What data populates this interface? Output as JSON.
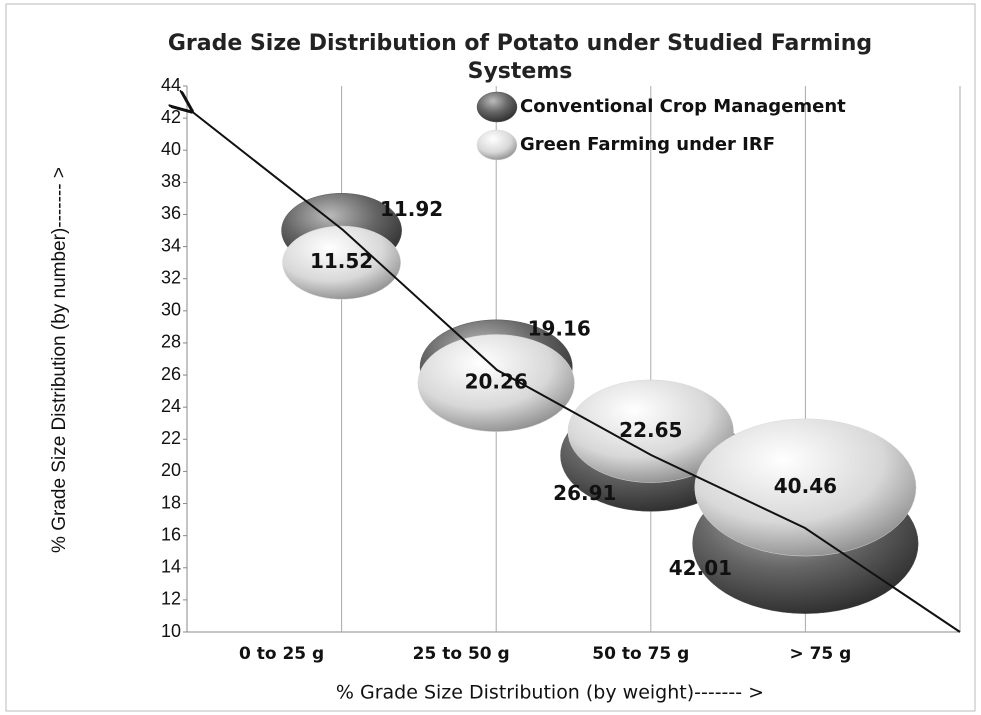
{
  "chart_data": {
    "type": "bubble",
    "title": "Grade Size Distribution of Potato under Studied Farming Systems",
    "x_label": "% Grade Size Distribution (by weight)------- >",
    "y_label": "% Grade Size Distribution (by number)------- >",
    "categories": [
      "0 to 25 g",
      "25 to 50 g",
      "50 to 75 g",
      "> 75 g"
    ],
    "series": [
      {
        "name": "Conventional Crop Management",
        "color": "#555555",
        "values": [
          35,
          26.5,
          21,
          15.5
        ],
        "sizes": [
          11.92,
          19.16,
          26.91,
          42.01
        ]
      },
      {
        "name": "Green Farming under IRF",
        "color": "#d8d8d8",
        "values": [
          33,
          25.5,
          22.5,
          19
        ],
        "sizes": [
          11.52,
          20.26,
          22.65,
          40.46
        ]
      }
    ],
    "ylim": [
      10,
      44
    ],
    "yticks": [
      10,
      12,
      14,
      16,
      18,
      20,
      22,
      24,
      26,
      28,
      30,
      32,
      34,
      36,
      38,
      40,
      42,
      44
    ],
    "grid": true,
    "legend": "top-right"
  }
}
